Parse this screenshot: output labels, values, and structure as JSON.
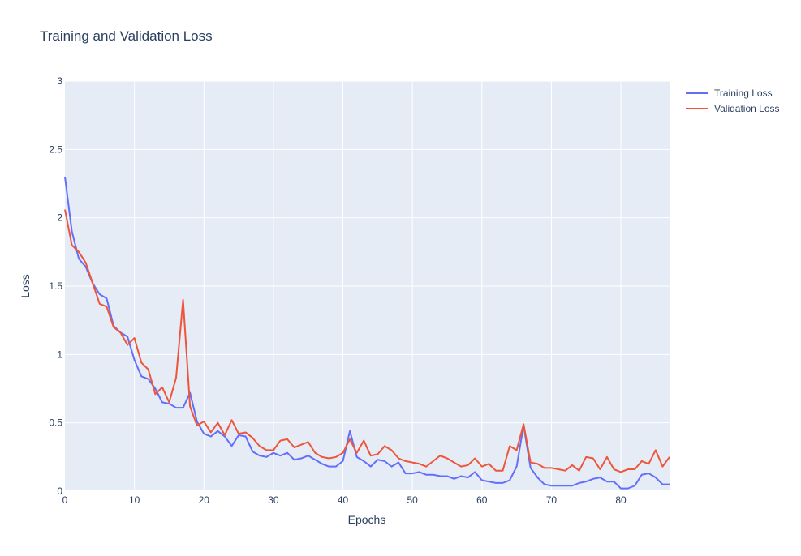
{
  "chart_data": {
    "type": "line",
    "title": "Training and Validation Loss",
    "xlabel": "Epochs",
    "ylabel": "Loss",
    "xlim": [
      0,
      87
    ],
    "ylim": [
      0,
      3
    ],
    "x_ticks": [
      0,
      10,
      20,
      30,
      40,
      50,
      60,
      70,
      80
    ],
    "y_ticks": [
      0,
      0.5,
      1,
      1.5,
      2,
      2.5,
      3
    ],
    "y_tick_labels": [
      "0",
      "0.5",
      "1",
      "1.5",
      "2",
      "2.5",
      "3"
    ],
    "grid": true,
    "legend_position": "top-right",
    "series": [
      {
        "name": "Training Loss",
        "color": "#636efa",
        "values": [
          2.3,
          1.9,
          1.7,
          1.64,
          1.52,
          1.44,
          1.41,
          1.21,
          1.16,
          1.13,
          0.96,
          0.84,
          0.82,
          0.75,
          0.65,
          0.64,
          0.61,
          0.61,
          0.72,
          0.51,
          0.42,
          0.4,
          0.44,
          0.4,
          0.33,
          0.41,
          0.4,
          0.29,
          0.26,
          0.25,
          0.28,
          0.26,
          0.28,
          0.23,
          0.24,
          0.26,
          0.23,
          0.2,
          0.18,
          0.18,
          0.22,
          0.44,
          0.25,
          0.22,
          0.18,
          0.23,
          0.22,
          0.18,
          0.21,
          0.13,
          0.13,
          0.14,
          0.12,
          0.12,
          0.11,
          0.11,
          0.09,
          0.11,
          0.1,
          0.14,
          0.08,
          0.07,
          0.06,
          0.06,
          0.08,
          0.18,
          0.48,
          0.17,
          0.1,
          0.05,
          0.04,
          0.04,
          0.04,
          0.04,
          0.06,
          0.07,
          0.09,
          0.1,
          0.07,
          0.07,
          0.02,
          0.02,
          0.04,
          0.12,
          0.13,
          0.1,
          0.05,
          0.05
        ]
      },
      {
        "name": "Validation Loss",
        "color": "#ef553b",
        "values": [
          2.06,
          1.8,
          1.75,
          1.67,
          1.52,
          1.37,
          1.35,
          1.2,
          1.16,
          1.07,
          1.12,
          0.94,
          0.89,
          0.71,
          0.76,
          0.65,
          0.83,
          1.4,
          0.62,
          0.48,
          0.51,
          0.43,
          0.5,
          0.41,
          0.52,
          0.42,
          0.43,
          0.39,
          0.33,
          0.3,
          0.3,
          0.37,
          0.38,
          0.32,
          0.34,
          0.36,
          0.28,
          0.25,
          0.24,
          0.25,
          0.28,
          0.38,
          0.28,
          0.37,
          0.26,
          0.27,
          0.33,
          0.3,
          0.24,
          0.22,
          0.21,
          0.2,
          0.18,
          0.22,
          0.26,
          0.24,
          0.21,
          0.18,
          0.19,
          0.24,
          0.18,
          0.2,
          0.15,
          0.15,
          0.33,
          0.3,
          0.49,
          0.21,
          0.2,
          0.17,
          0.17,
          0.16,
          0.15,
          0.19,
          0.15,
          0.25,
          0.24,
          0.16,
          0.25,
          0.16,
          0.14,
          0.16,
          0.16,
          0.22,
          0.2,
          0.3,
          0.18,
          0.25
        ]
      }
    ]
  }
}
